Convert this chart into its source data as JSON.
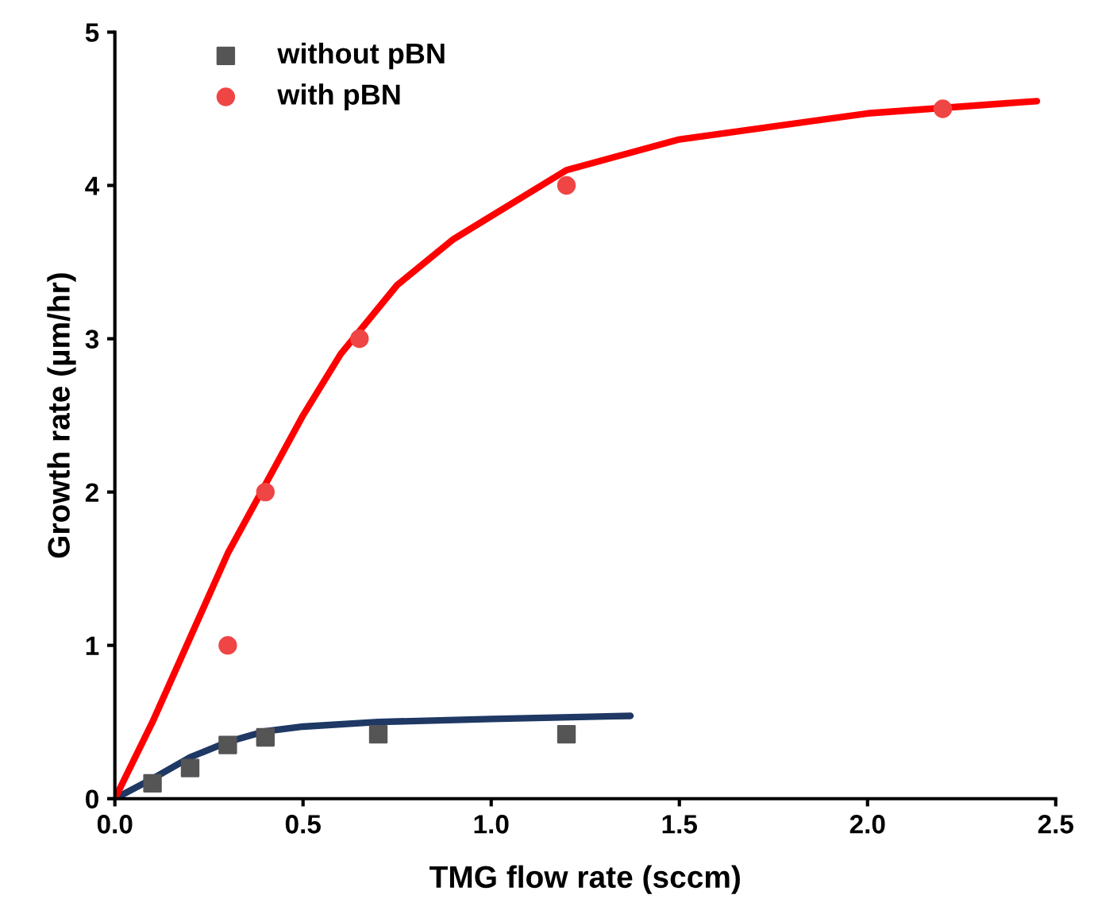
{
  "chart_data": {
    "type": "scatter",
    "xlabel": "TMG flow rate (sccm)",
    "ylabel": "Growth rate (µm/hr)",
    "xlim": [
      0,
      2.5
    ],
    "ylim": [
      0,
      5
    ],
    "xticks": [
      {
        "value": 0,
        "label": "0.0"
      },
      {
        "value": 0.5,
        "label": "0.5"
      },
      {
        "value": 1.0,
        "label": "1.0"
      },
      {
        "value": 1.5,
        "label": "1.5"
      },
      {
        "value": 2.0,
        "label": "2.0"
      },
      {
        "value": 2.5,
        "label": "2.5"
      }
    ],
    "yticks": [
      0,
      1,
      2,
      3,
      4,
      5
    ],
    "grid": false,
    "legend": "top left",
    "series": [
      {
        "type": "line",
        "marker": "none",
        "color": "#1f3864",
        "x": [
          0,
          0.1,
          0.2,
          0.3,
          0.4,
          0.5,
          0.7,
          1.0,
          1.37
        ],
        "values": [
          0,
          0.13,
          0.27,
          0.37,
          0.44,
          0.47,
          0.5,
          0.52,
          0.54
        ]
      },
      {
        "type": "line",
        "marker": "none",
        "color": "#ff0000",
        "x": [
          0,
          0.1,
          0.2,
          0.3,
          0.4,
          0.5,
          0.6,
          0.75,
          0.9,
          1.0,
          1.2,
          1.5,
          2.0,
          2.45
        ],
        "values": [
          0,
          0.5,
          1.05,
          1.6,
          2.05,
          2.5,
          2.9,
          3.35,
          3.65,
          3.8,
          4.1,
          4.3,
          4.47,
          4.55
        ]
      },
      {
        "name": "without pBN",
        "marker": "square",
        "color": "#555555",
        "x": [
          0.1,
          0.2,
          0.3,
          0.4,
          0.7,
          1.2
        ],
        "values": [
          0.1,
          0.2,
          0.35,
          0.4,
          0.42,
          0.42
        ]
      },
      {
        "name": "with pBN",
        "marker": "circle",
        "color": "#f04545",
        "x": [
          0.3,
          0.4,
          0.65,
          1.2,
          2.2
        ],
        "values": [
          1.0,
          2.0,
          3.0,
          4.0,
          4.5
        ]
      }
    ]
  }
}
